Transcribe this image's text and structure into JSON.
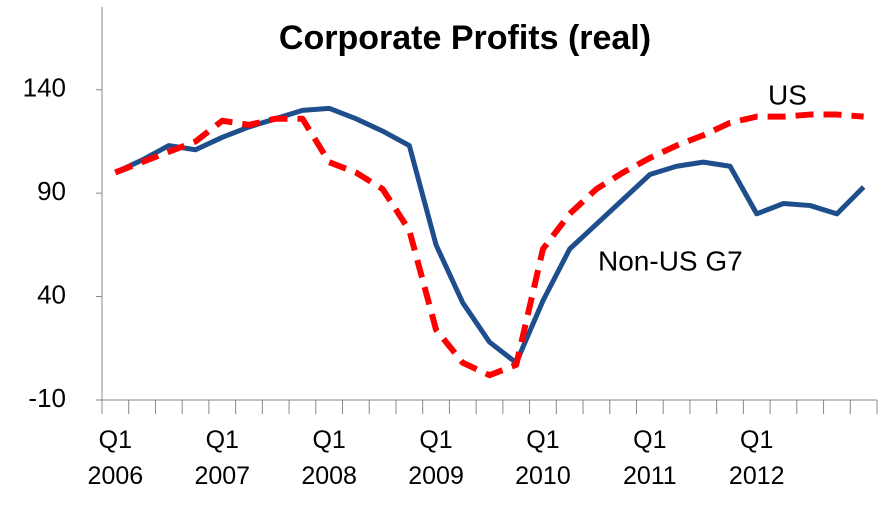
{
  "chart_data": {
    "type": "line",
    "title": "Corporate Profits (real)",
    "categories": [
      "Q1 2006",
      null,
      null,
      null,
      "Q1 2007",
      null,
      null,
      null,
      "Q1 2008",
      null,
      null,
      null,
      "Q1 2009",
      null,
      null,
      null,
      "Q1 2010",
      null,
      null,
      null,
      "Q1 2011",
      null,
      null,
      null,
      "Q1 2012",
      null,
      null,
      null,
      null
    ],
    "series": [
      {
        "name": "Non-US G7",
        "color": "#1f4e8c",
        "dashed": false,
        "values": [
          100,
          106,
          113,
          111,
          117,
          122,
          126,
          130,
          131,
          126,
          120,
          113,
          65,
          37,
          18,
          8,
          38,
          63,
          75,
          87,
          99,
          103,
          105,
          103,
          80,
          85,
          84,
          80,
          93
        ]
      },
      {
        "name": "US",
        "color": "#ff0000",
        "dashed": true,
        "values": [
          100,
          105,
          110,
          115,
          125,
          123,
          126,
          126,
          105,
          100,
          92,
          72,
          24,
          8,
          2,
          7,
          63,
          80,
          92,
          100,
          107,
          113,
          118,
          124,
          127,
          127,
          128,
          128,
          127
        ]
      }
    ],
    "ylim": [
      -10,
      180
    ],
    "yticks": [
      -10,
      40,
      90,
      140
    ]
  }
}
